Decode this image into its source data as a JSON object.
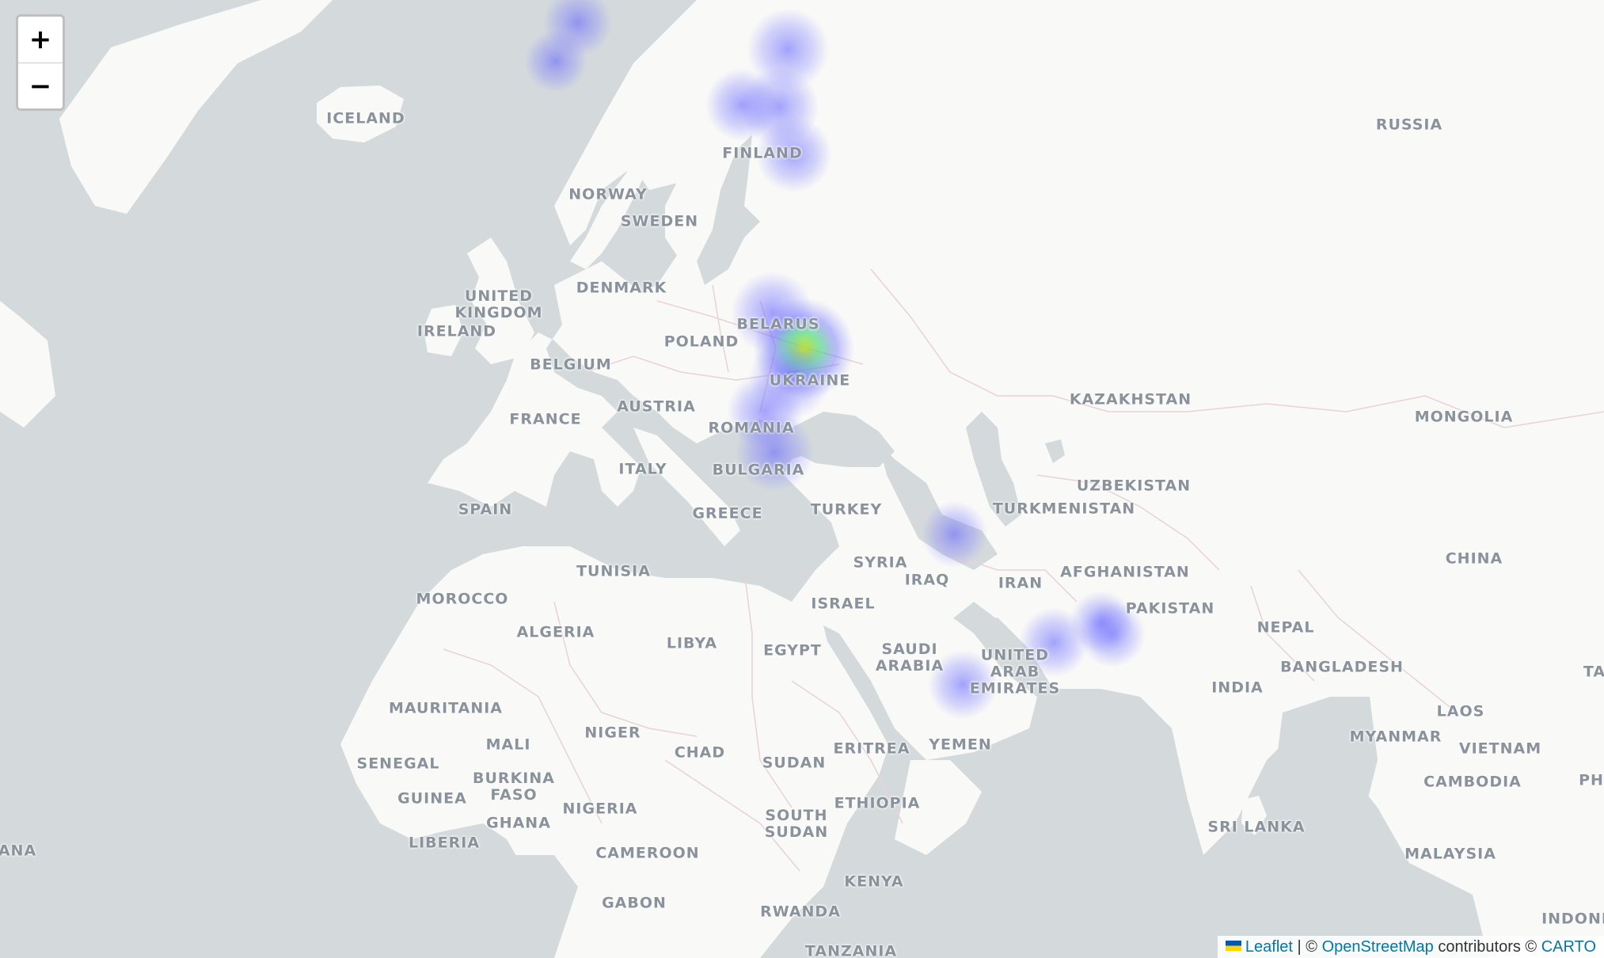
{
  "map": {
    "land_color": "#f9f9f8",
    "water_color": "#d4dadc",
    "border_color": "#e8d2d8",
    "labels": [
      {
        "text": "ICELAND"
      },
      {
        "text": "NORWAY"
      },
      {
        "text": "SWEDEN"
      },
      {
        "text": "FINLAND"
      },
      {
        "text": "RUSSIA"
      },
      {
        "text": "DENMARK"
      },
      {
        "text": "UNITED\nKINGDOM"
      },
      {
        "text": "IRELAND"
      },
      {
        "text": "BELARUS"
      },
      {
        "text": "POLAND"
      },
      {
        "text": "BELGIUM"
      },
      {
        "text": "UKRAINE"
      },
      {
        "text": "KAZAKHSTAN"
      },
      {
        "text": "MONGOLIA"
      },
      {
        "text": "FRANCE"
      },
      {
        "text": "AUSTRIA"
      },
      {
        "text": "ROMANIA"
      },
      {
        "text": "ITALY"
      },
      {
        "text": "BULGARIA"
      },
      {
        "text": "UZBEKISTAN"
      },
      {
        "text": "TURKMENISTAN"
      },
      {
        "text": "SPAIN"
      },
      {
        "text": "TURKEY"
      },
      {
        "text": "GREECE"
      },
      {
        "text": "CHINA"
      },
      {
        "text": "SYRIA"
      },
      {
        "text": "IRAQ"
      },
      {
        "text": "IRAN"
      },
      {
        "text": "AFGHANISTAN"
      },
      {
        "text": "TUNISIA"
      },
      {
        "text": "MOROCCO"
      },
      {
        "text": "ISRAEL"
      },
      {
        "text": "PAKISTAN"
      },
      {
        "text": "ALGERIA"
      },
      {
        "text": "LIBYA"
      },
      {
        "text": "EGYPT"
      },
      {
        "text": "SAUDI\nARABIA"
      },
      {
        "text": "UNITED\nARAB\nEMIRATES"
      },
      {
        "text": "NEPAL"
      },
      {
        "text": "INDIA"
      },
      {
        "text": "BANGLADESH"
      },
      {
        "text": "TA"
      },
      {
        "text": "MAURITANIA"
      },
      {
        "text": "LAOS"
      },
      {
        "text": "MALI"
      },
      {
        "text": "NIGER"
      },
      {
        "text": "CHAD"
      },
      {
        "text": "SUDAN"
      },
      {
        "text": "ERITREA"
      },
      {
        "text": "YEMEN"
      },
      {
        "text": "MYANMAR"
      },
      {
        "text": "VIETNAM"
      },
      {
        "text": "SENEGAL"
      },
      {
        "text": "BURKINA\nFASO"
      },
      {
        "text": "GUINEA"
      },
      {
        "text": "NIGERIA"
      },
      {
        "text": "CAMBODIA"
      },
      {
        "text": "PH"
      },
      {
        "text": "GHANA"
      },
      {
        "text": "ETHIOPIA"
      },
      {
        "text": "SOUTH\nSUDAN"
      },
      {
        "text": "SRI LANKA"
      },
      {
        "text": "ANA"
      },
      {
        "text": "LIBERIA"
      },
      {
        "text": "CAMEROON"
      },
      {
        "text": "MALAYSIA"
      },
      {
        "text": "KENYA"
      },
      {
        "text": "GABON"
      },
      {
        "text": "RWANDA"
      },
      {
        "text": "INDONI"
      },
      {
        "text": "TANZANIA"
      }
    ],
    "heatmap": {
      "gradient": [
        "#5a5aff",
        "#7a7aff",
        "#39d27a",
        "#c8f000"
      ],
      "points": [
        {
          "lat": 60.5,
          "lng": 7.5,
          "weight": 0.4
        },
        {
          "lat": 58.9,
          "lng": 5.7,
          "weight": 0.3
        },
        {
          "lat": 59.4,
          "lng": 24.8,
          "weight": 0.6
        },
        {
          "lat": 56.9,
          "lng": 24.1,
          "weight": 0.55
        },
        {
          "lat": 54.7,
          "lng": 25.3,
          "weight": 0.5
        },
        {
          "lat": 57.0,
          "lng": 21.0,
          "weight": 0.45
        },
        {
          "lat": 46.5,
          "lng": 23.5,
          "weight": 0.6
        },
        {
          "lat": 44.4,
          "lng": 26.1,
          "weight": 0.9
        },
        {
          "lat": 42.7,
          "lng": 25.0,
          "weight": 0.6
        },
        {
          "lat": 40.6,
          "lng": 22.9,
          "weight": 0.5
        },
        {
          "lat": 38.0,
          "lng": 23.7,
          "weight": 0.55
        },
        {
          "lat": 32.5,
          "lng": 38.5,
          "weight": 0.35
        },
        {
          "lat": 24.7,
          "lng": 46.7,
          "weight": 0.4
        },
        {
          "lat": 21.5,
          "lng": 39.2,
          "weight": 0.4
        },
        {
          "lat": 25.3,
          "lng": 51.5,
          "weight": 0.35
        },
        {
          "lat": 26.2,
          "lng": 50.6,
          "weight": 0.3
        }
      ]
    }
  },
  "controls": {
    "zoom_in": "+",
    "zoom_out": "−"
  },
  "attribution": {
    "leaflet": "Leaflet",
    "sep": "| ©",
    "osm": "OpenStreetMap",
    "contributors": "contributors ©",
    "carto": "CARTO"
  }
}
